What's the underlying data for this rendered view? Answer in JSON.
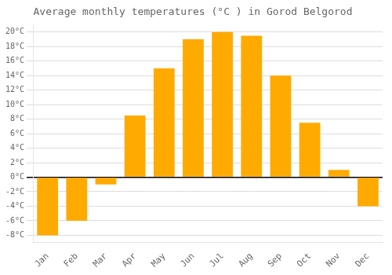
{
  "chart_data": {
    "type": "bar",
    "title": "Average monthly temperatures (°C ) in Gorod Belgorod",
    "categories": [
      "Jan",
      "Feb",
      "Mar",
      "Apr",
      "May",
      "Jun",
      "Jul",
      "Aug",
      "Sep",
      "Oct",
      "Nov",
      "Dec"
    ],
    "values": [
      -8,
      -6,
      -1,
      8.5,
      15,
      19,
      20,
      19.5,
      14,
      7.5,
      1,
      -4
    ],
    "color": "#FFAA00",
    "ylim": [
      -9,
      21
    ],
    "yticks": [
      {
        "value": -8,
        "label": "-8°C"
      },
      {
        "value": -6,
        "label": "-6°C"
      },
      {
        "value": -4,
        "label": "-4°C"
      },
      {
        "value": -2,
        "label": "-2°C"
      },
      {
        "value": 0,
        "label": "0°C"
      },
      {
        "value": 2,
        "label": "2°C"
      },
      {
        "value": 4,
        "label": "4°C"
      },
      {
        "value": 6,
        "label": "6°C"
      },
      {
        "value": 8,
        "label": "8°C"
      },
      {
        "value": 10,
        "label": "10°C"
      },
      {
        "value": 12,
        "label": "12°C"
      },
      {
        "value": 14,
        "label": "14°C"
      },
      {
        "value": 16,
        "label": "16°C"
      },
      {
        "value": 18,
        "label": "18°C"
      },
      {
        "value": 20,
        "label": "20°C"
      }
    ],
    "grid": true
  }
}
